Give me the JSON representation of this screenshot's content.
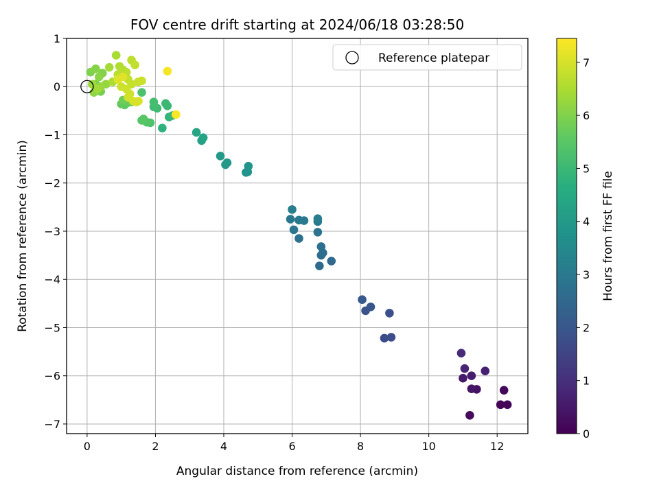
{
  "chart_data": {
    "type": "scatter",
    "title": "FOV centre drift starting at 2024/06/18 03:28:50",
    "xlabel": "Angular distance from reference (arcmin)",
    "ylabel": "Rotation from reference (arcmin)",
    "xlim": [
      -0.6,
      12.9
    ],
    "ylim": [
      -7.2,
      1.0
    ],
    "xticks": [
      0,
      2,
      4,
      6,
      8,
      10,
      12
    ],
    "yticks": [
      1,
      0,
      -1,
      -2,
      -3,
      -4,
      -5,
      -6,
      -7
    ],
    "grid": true,
    "colormap": "viridis",
    "colorbar": {
      "label": "Hours from first FF file",
      "range": [
        0,
        7.45
      ],
      "ticks": [
        0,
        1,
        2,
        3,
        4,
        5,
        6,
        7
      ]
    },
    "legend": {
      "position": "top-right",
      "entries": [
        {
          "label": "Reference platepar",
          "marker": "open-circle"
        }
      ]
    },
    "reference_point": {
      "x": 0,
      "y": 0
    },
    "points": [
      {
        "x": 12.1,
        "y": -6.6,
        "h": 0.05
      },
      {
        "x": 12.3,
        "y": -6.6,
        "h": 0.08
      },
      {
        "x": 12.2,
        "y": -6.3,
        "h": 0.12
      },
      {
        "x": 11.2,
        "y": -6.82,
        "h": 0.2
      },
      {
        "x": 11.4,
        "y": -6.28,
        "h": 0.35
      },
      {
        "x": 11.25,
        "y": -6.27,
        "h": 0.45
      },
      {
        "x": 11.0,
        "y": -6.05,
        "h": 0.55
      },
      {
        "x": 11.25,
        "y": -6.0,
        "h": 0.6
      },
      {
        "x": 11.65,
        "y": -5.9,
        "h": 0.7
      },
      {
        "x": 11.05,
        "y": -5.85,
        "h": 0.8
      },
      {
        "x": 10.95,
        "y": -5.53,
        "h": 0.9
      },
      {
        "x": 8.7,
        "y": -5.22,
        "h": 1.7
      },
      {
        "x": 8.9,
        "y": -5.2,
        "h": 1.75
      },
      {
        "x": 8.85,
        "y": -4.7,
        "h": 1.8
      },
      {
        "x": 8.15,
        "y": -4.65,
        "h": 1.95
      },
      {
        "x": 8.3,
        "y": -4.57,
        "h": 2.0
      },
      {
        "x": 8.05,
        "y": -4.42,
        "h": 2.1
      },
      {
        "x": 7.15,
        "y": -3.62,
        "h": 2.55
      },
      {
        "x": 6.8,
        "y": -3.72,
        "h": 2.6
      },
      {
        "x": 6.85,
        "y": -3.5,
        "h": 2.65
      },
      {
        "x": 6.9,
        "y": -3.45,
        "h": 2.7
      },
      {
        "x": 6.85,
        "y": -3.32,
        "h": 2.75
      },
      {
        "x": 6.2,
        "y": -3.15,
        "h": 2.8
      },
      {
        "x": 6.75,
        "y": -3.02,
        "h": 2.85
      },
      {
        "x": 6.05,
        "y": -2.97,
        "h": 2.9
      },
      {
        "x": 5.95,
        "y": -2.75,
        "h": 2.95
      },
      {
        "x": 6.2,
        "y": -2.77,
        "h": 3.0
      },
      {
        "x": 6.35,
        "y": -2.78,
        "h": 3.05
      },
      {
        "x": 6.75,
        "y": -2.8,
        "h": 3.1
      },
      {
        "x": 6.75,
        "y": -2.74,
        "h": 3.15
      },
      {
        "x": 6.0,
        "y": -2.55,
        "h": 3.2
      },
      {
        "x": 4.65,
        "y": -1.78,
        "h": 3.8
      },
      {
        "x": 4.7,
        "y": -1.77,
        "h": 3.85
      },
      {
        "x": 4.72,
        "y": -1.65,
        "h": 3.9
      },
      {
        "x": 4.05,
        "y": -1.62,
        "h": 3.95
      },
      {
        "x": 4.1,
        "y": -1.58,
        "h": 4.0
      },
      {
        "x": 3.9,
        "y": -1.44,
        "h": 4.05
      },
      {
        "x": 3.35,
        "y": -1.12,
        "h": 4.3
      },
      {
        "x": 3.4,
        "y": -1.06,
        "h": 4.35
      },
      {
        "x": 3.2,
        "y": -0.95,
        "h": 4.4
      },
      {
        "x": 2.2,
        "y": -0.86,
        "h": 4.8
      },
      {
        "x": 2.4,
        "y": -0.63,
        "h": 4.9
      },
      {
        "x": 2.5,
        "y": -0.6,
        "h": 4.95
      },
      {
        "x": 2.35,
        "y": -0.4,
        "h": 5.0
      },
      {
        "x": 2.3,
        "y": -0.35,
        "h": 5.05
      },
      {
        "x": 2.05,
        "y": -0.45,
        "h": 5.1
      },
      {
        "x": 1.95,
        "y": -0.42,
        "h": 5.15
      },
      {
        "x": 1.95,
        "y": -0.32,
        "h": 5.2
      },
      {
        "x": 1.6,
        "y": -0.12,
        "h": 5.3
      },
      {
        "x": 1.85,
        "y": -0.75,
        "h": 5.35
      },
      {
        "x": 1.75,
        "y": -0.74,
        "h": 5.4
      },
      {
        "x": 1.6,
        "y": -0.7,
        "h": 5.45
      },
      {
        "x": 1.65,
        "y": -0.67,
        "h": 5.5
      },
      {
        "x": 1.1,
        "y": -0.38,
        "h": 5.6
      },
      {
        "x": 1.0,
        "y": -0.36,
        "h": 5.65
      },
      {
        "x": 1.2,
        "y": -0.33,
        "h": 5.7
      },
      {
        "x": 1.3,
        "y": -0.32,
        "h": 5.75
      },
      {
        "x": 1.05,
        "y": -0.28,
        "h": 5.8
      },
      {
        "x": 0.4,
        "y": -0.1,
        "h": 5.9
      },
      {
        "x": 0.25,
        "y": 0.05,
        "h": 5.95
      },
      {
        "x": 0.1,
        "y": 0.3,
        "h": 6.0
      },
      {
        "x": 0.45,
        "y": 0.28,
        "h": 6.05
      },
      {
        "x": 0.25,
        "y": 0.37,
        "h": 6.1
      },
      {
        "x": 0.35,
        "y": 0.2,
        "h": 6.15
      },
      {
        "x": 0.2,
        "y": -0.12,
        "h": 6.2
      },
      {
        "x": 0.55,
        "y": 0.05,
        "h": 6.25
      },
      {
        "x": 0.4,
        "y": 0.0,
        "h": 6.3
      },
      {
        "x": 0.15,
        "y": 0.05,
        "h": 6.35
      },
      {
        "x": 0.3,
        "y": -0.05,
        "h": 6.4
      },
      {
        "x": 0.65,
        "y": 0.4,
        "h": 6.45
      },
      {
        "x": 0.85,
        "y": 0.65,
        "h": 6.5
      },
      {
        "x": 0.75,
        "y": 0.1,
        "h": 6.55
      },
      {
        "x": 0.95,
        "y": 0.42,
        "h": 6.6
      },
      {
        "x": 1.05,
        "y": 0.35,
        "h": 6.65
      },
      {
        "x": 0.9,
        "y": 0.25,
        "h": 6.7
      },
      {
        "x": 1.15,
        "y": 0.3,
        "h": 6.72
      },
      {
        "x": 1.3,
        "y": 0.55,
        "h": 6.75
      },
      {
        "x": 1.4,
        "y": 0.45,
        "h": 6.78
      },
      {
        "x": 1.2,
        "y": 0.15,
        "h": 6.8
      },
      {
        "x": 1.3,
        "y": 0.05,
        "h": 6.83
      },
      {
        "x": 1.5,
        "y": 0.1,
        "h": 6.85
      },
      {
        "x": 1.6,
        "y": 0.12,
        "h": 6.88
      },
      {
        "x": 1.0,
        "y": 0.0,
        "h": 6.9
      },
      {
        "x": 1.15,
        "y": -0.05,
        "h": 6.92
      },
      {
        "x": 1.25,
        "y": -0.15,
        "h": 6.95
      },
      {
        "x": 1.2,
        "y": -0.22,
        "h": 6.97
      },
      {
        "x": 1.35,
        "y": -0.3,
        "h": 7.0
      },
      {
        "x": 1.45,
        "y": -0.32,
        "h": 7.02
      },
      {
        "x": 1.5,
        "y": -0.3,
        "h": 7.05
      },
      {
        "x": 0.9,
        "y": 0.15,
        "h": 7.08
      },
      {
        "x": 1.05,
        "y": 0.2,
        "h": 7.1
      },
      {
        "x": 2.35,
        "y": 0.32,
        "h": 7.35
      },
      {
        "x": 2.6,
        "y": -0.58,
        "h": 7.4
      }
    ]
  }
}
